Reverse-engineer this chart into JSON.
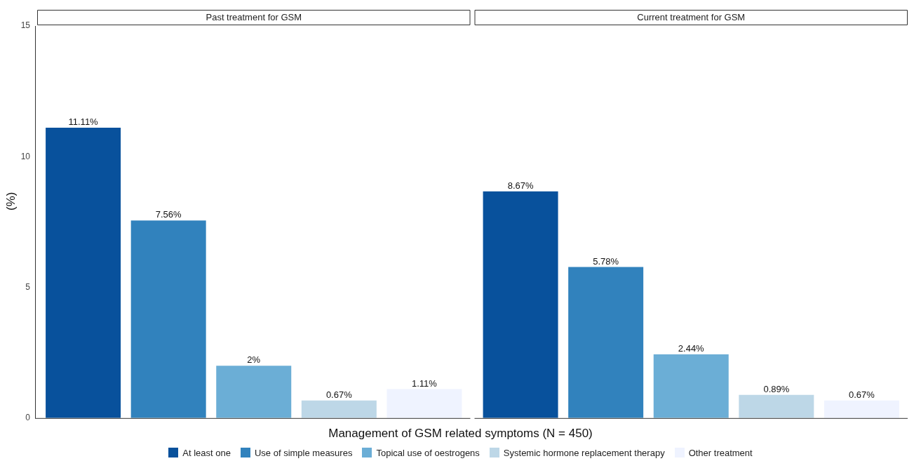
{
  "chart_data": {
    "type": "bar",
    "xlabel": "Management of GSM related symptoms (N = 450)",
    "ylabel": "(%)",
    "categories": [
      "Past treatment for GSM",
      "Current treatment for GSM"
    ],
    "ylim": [
      0,
      15
    ],
    "yticks": [
      0,
      5,
      10,
      15
    ],
    "legend": "bottom",
    "series": [
      {
        "name": "At least one",
        "color": "#08519c",
        "values": [
          11.11,
          8.67
        ],
        "value_labels": [
          "11.11%",
          "8.67%"
        ]
      },
      {
        "name": "Use of simple measures",
        "color": "#3182bd",
        "values": [
          7.56,
          5.78
        ],
        "value_labels": [
          "7.56%",
          "5.78%"
        ]
      },
      {
        "name": "Topical use of oestrogens",
        "color": "#6baed6",
        "values": [
          2,
          2.44
        ],
        "value_labels": [
          "2%",
          "2.44%"
        ]
      },
      {
        "name": "Systemic hormone replacement therapy",
        "color": "#bdd7e7",
        "values": [
          0.67,
          0.89
        ],
        "value_labels": [
          "0.67%",
          "0.89%"
        ]
      },
      {
        "name": "Other treatment",
        "color": "#eff3ff",
        "values": [
          1.11,
          0.67
        ],
        "value_labels": [
          "1.11%",
          "0.67%"
        ]
      }
    ]
  }
}
